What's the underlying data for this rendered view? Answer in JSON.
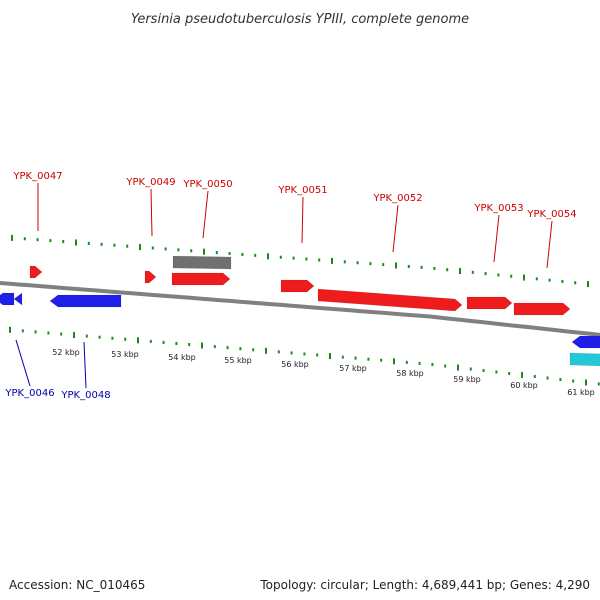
{
  "title": "Yersinia pseudotuberculosis YPIII, complete genome",
  "footer": {
    "accession": "Accession: NC_010465",
    "topology": "Topology: circular; Length: 4,689,441 bp; Genes: 4,290"
  },
  "colors": {
    "forward": "#ee1c1c",
    "reverse": "#1f1fe8",
    "other": "#707070",
    "rna": "#22c8d6",
    "tick": "#1a8a1a",
    "backbone": "#808080",
    "forward_label": "#cc0000",
    "reverse_label": "#0000aa"
  },
  "scale_labels": [
    "52 kbp",
    "53 kbp",
    "54 kbp",
    "55 kbp",
    "56 kbp",
    "57 kbp",
    "58 kbp",
    "59 kbp",
    "60 kbp",
    "61 kbp"
  ],
  "gene_labels_top": [
    "YPK_0047",
    "YPK_0049",
    "YPK_0050",
    "YPK_0051",
    "YPK_0052",
    "YPK_0053",
    "YPK_0054"
  ],
  "gene_labels_bottom": [
    "YPK_0046",
    "YPK_0048"
  ],
  "icons": {
    "forward_gene": "right-arrow-shape",
    "reverse_gene": "left-arrow-shape"
  }
}
